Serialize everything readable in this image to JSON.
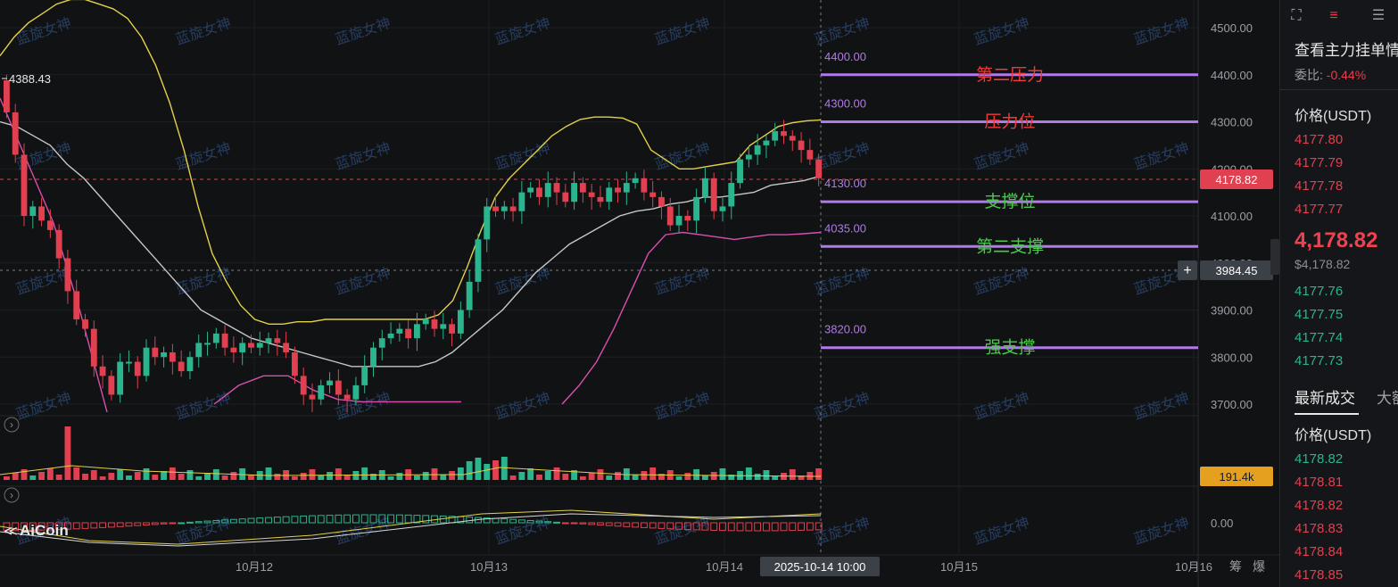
{
  "watermark": "蓝旋女神",
  "logo": "AiCoin",
  "colors": {
    "up": "#2bb58e",
    "down": "#e0404f",
    "level_line": "#b07ae8",
    "bb_upper": "#e3d04a",
    "bb_mid": "#c7c7c7",
    "bb_lower": "#d94fb0",
    "resistance_text": "#f03a3a",
    "support_text": "#4cc94c"
  },
  "chart_data": {
    "type": "candlestick",
    "ylim": [
      3640,
      4560
    ],
    "y_ticks": [
      "4500.00",
      "4400.00",
      "4300.00",
      "4200.00",
      "4100.00",
      "4000.00",
      "3900.00",
      "3800.00",
      "3700.00"
    ],
    "x_ticks": [
      "10月12",
      "10月13",
      "10月14",
      "10月15",
      "10月16"
    ],
    "max_label": "4388.43",
    "last_price": "4178.82",
    "crosshair_price": "3984.45",
    "crosshair_time": "2025-10-14 10:00",
    "volume_label": "191.4k",
    "macd_zero_label": "0.00",
    "bottom_right": [
      "筹",
      "爆"
    ],
    "levels": [
      {
        "price": 4400,
        "value_label": "4400.00",
        "name": "第二压力",
        "kind": "resistance"
      },
      {
        "price": 4300,
        "value_label": "4300.00",
        "name": "压力位",
        "kind": "resistance"
      },
      {
        "price": 4130,
        "value_label": "4130.00",
        "name": "支撑位",
        "kind": "support"
      },
      {
        "price": 4035,
        "value_label": "4035.00",
        "name": "第二支撑",
        "kind": "support"
      },
      {
        "price": 3820,
        "value_label": "3820.00",
        "name": "强支撑",
        "kind": "support"
      }
    ],
    "closes": [
      4320,
      4230,
      4100,
      4120,
      4090,
      4070,
      4010,
      3940,
      3880,
      3860,
      3780,
      3760,
      3720,
      3790,
      3790,
      3760,
      3820,
      3800,
      3810,
      3790,
      3770,
      3800,
      3830,
      3830,
      3850,
      3820,
      3810,
      3830,
      3820,
      3830,
      3840,
      3830,
      3810,
      3760,
      3720,
      3710,
      3740,
      3750,
      3720,
      3710,
      3740,
      3780,
      3820,
      3840,
      3850,
      3860,
      3840,
      3870,
      3880,
      3860,
      3870,
      3850,
      3900,
      3960,
      4050,
      4120,
      4110,
      4120,
      4110,
      4150,
      4160,
      4140,
      4170,
      4150,
      4130,
      4170,
      4150,
      4140,
      4130,
      4160,
      4150,
      4170,
      4180,
      4150,
      4140,
      4120,
      4080,
      4100,
      4090,
      4140,
      4180,
      4110,
      4120,
      4170,
      4220,
      4230,
      4250,
      4260,
      4280,
      4270,
      4260,
      4240,
      4220,
      4180
    ],
    "bb_upper": [
      4440,
      4480,
      4510,
      4530,
      4550,
      4560,
      4560,
      4550,
      4540,
      4520,
      4480,
      4420,
      4340,
      4240,
      4120,
      4020,
      3960,
      3910,
      3880,
      3870,
      3870,
      3875,
      3875,
      3880,
      3880,
      3880,
      3880,
      3880,
      3880,
      3880,
      3880,
      3890,
      3920,
      3990,
      4070,
      4140,
      4180,
      4210,
      4240,
      4270,
      4290,
      4305,
      4310,
      4310,
      4308,
      4295,
      4240,
      4220,
      4200,
      4200,
      4205,
      4210,
      4215,
      4250,
      4270,
      4290,
      4298,
      4302,
      4304
    ],
    "bb_mid": [
      4300,
      4290,
      4270,
      4250,
      4210,
      4180,
      4140,
      4100,
      4060,
      4020,
      3980,
      3940,
      3900,
      3880,
      3860,
      3840,
      3830,
      3820,
      3810,
      3800,
      3790,
      3780,
      3780,
      3780,
      3780,
      3780,
      3790,
      3810,
      3840,
      3870,
      3900,
      3940,
      3980,
      4010,
      4040,
      4060,
      4080,
      4100,
      4110,
      4115,
      4125,
      4130,
      4140,
      4140,
      4145,
      4150,
      4165,
      4170,
      4175,
      4185
    ],
    "bb_lower": [
      3700,
      3740,
      3760,
      3760,
      3730,
      3710,
      3705,
      3705,
      3705,
      3705,
      3705
    ],
    "bb_lower_b": [
      3700,
      3740,
      3790,
      3860,
      3940,
      4020,
      4060,
      4065,
      4060,
      4055,
      4050,
      4055,
      4060,
      4060,
      4062,
      4065
    ]
  }
}
